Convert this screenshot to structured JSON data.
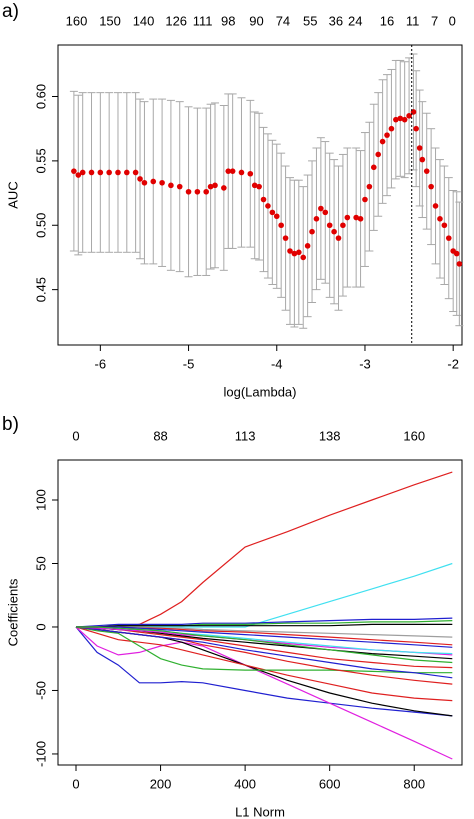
{
  "chart_data": [
    {
      "type": "errorbar",
      "panel_label": "a)",
      "x_label": "log(Lambda)",
      "y_label": "AUC",
      "xlim": [
        -6.48,
        -1.9
      ],
      "ylim": [
        0.407,
        0.64
      ],
      "xticks": [
        -6,
        -5,
        -4,
        -3,
        -2
      ],
      "yticks": [
        {
          "value": 0.45,
          "label": "0.45"
        },
        {
          "value": 0.5,
          "label": "0.50"
        },
        {
          "value": 0.55,
          "label": "0.55"
        },
        {
          "value": 0.6,
          "label": "0.60"
        }
      ],
      "xticks_top": [
        {
          "value": -6.27,
          "label": "160"
        },
        {
          "value": -5.89,
          "label": "150"
        },
        {
          "value": -5.51,
          "label": "140"
        },
        {
          "value": -5.14,
          "label": "126"
        },
        {
          "value": -4.84,
          "label": "111"
        },
        {
          "value": -4.55,
          "label": "98"
        },
        {
          "value": -4.23,
          "label": "90"
        },
        {
          "value": -3.93,
          "label": "74"
        },
        {
          "value": -3.62,
          "label": "55"
        },
        {
          "value": -3.33,
          "label": "36"
        },
        {
          "value": -3.11,
          "label": "24"
        },
        {
          "value": -2.75,
          "label": "16"
        },
        {
          "value": -2.46,
          "label": "11"
        },
        {
          "value": -2.21,
          "label": "7"
        },
        {
          "value": -2.01,
          "label": "0"
        }
      ],
      "reference_line_x": -2.47,
      "color": "#e00000",
      "error_color": "#a8a8a8",
      "x": [
        -6.3,
        -6.25,
        -6.2,
        -6.1,
        -6.0,
        -5.9,
        -5.8,
        -5.7,
        -5.6,
        -5.55,
        -5.5,
        -5.4,
        -5.3,
        -5.2,
        -5.1,
        -5.0,
        -4.9,
        -4.8,
        -4.75,
        -4.7,
        -4.6,
        -4.55,
        -4.5,
        -4.4,
        -4.3,
        -4.25,
        -4.2,
        -4.15,
        -4.1,
        -4.05,
        -4.0,
        -3.95,
        -3.9,
        -3.85,
        -3.8,
        -3.75,
        -3.7,
        -3.65,
        -3.6,
        -3.55,
        -3.5,
        -3.45,
        -3.4,
        -3.35,
        -3.3,
        -3.25,
        -3.2,
        -3.1,
        -3.05,
        -3.0,
        -2.95,
        -2.9,
        -2.85,
        -2.8,
        -2.75,
        -2.7,
        -2.65,
        -2.6,
        -2.55,
        -2.5,
        -2.45,
        -2.42,
        -2.38,
        -2.35,
        -2.3,
        -2.25,
        -2.2,
        -2.15,
        -2.1,
        -2.05,
        -2.0,
        -1.96,
        -1.93
      ],
      "values": [
        0.542,
        0.539,
        0.541,
        0.541,
        0.541,
        0.541,
        0.541,
        0.541,
        0.541,
        0.536,
        0.533,
        0.534,
        0.533,
        0.531,
        0.53,
        0.526,
        0.526,
        0.526,
        0.53,
        0.531,
        0.529,
        0.542,
        0.542,
        0.541,
        0.54,
        0.531,
        0.53,
        0.52,
        0.515,
        0.51,
        0.507,
        0.5,
        0.49,
        0.48,
        0.478,
        0.479,
        0.475,
        0.484,
        0.495,
        0.505,
        0.513,
        0.51,
        0.5,
        0.495,
        0.49,
        0.5,
        0.506,
        0.506,
        0.505,
        0.52,
        0.53,
        0.545,
        0.555,
        0.565,
        0.57,
        0.575,
        0.582,
        0.583,
        0.582,
        0.585,
        0.588,
        0.575,
        0.56,
        0.551,
        0.542,
        0.53,
        0.515,
        0.505,
        0.5,
        0.49,
        0.48,
        0.478,
        0.47
      ],
      "errors": [
        0.062,
        0.062,
        0.062,
        0.062,
        0.062,
        0.062,
        0.062,
        0.062,
        0.062,
        0.062,
        0.063,
        0.064,
        0.065,
        0.066,
        0.066,
        0.066,
        0.065,
        0.065,
        0.064,
        0.064,
        0.064,
        0.06,
        0.06,
        0.058,
        0.057,
        0.057,
        0.057,
        0.056,
        0.056,
        0.056,
        0.056,
        0.056,
        0.056,
        0.057,
        0.057,
        0.056,
        0.055,
        0.055,
        0.055,
        0.055,
        0.055,
        0.055,
        0.056,
        0.056,
        0.056,
        0.055,
        0.054,
        0.054,
        0.053,
        0.052,
        0.05,
        0.049,
        0.048,
        0.048,
        0.047,
        0.046,
        0.046,
        0.045,
        0.045,
        0.045,
        0.045,
        0.045,
        0.045,
        0.045,
        0.045,
        0.045,
        0.045,
        0.046,
        0.046,
        0.047,
        0.047,
        0.048,
        0.048
      ]
    },
    {
      "type": "line",
      "panel_label": "b)",
      "x_label": "L1 Norm",
      "y_label": "Coefficients",
      "xlim": [
        -42.6,
        913
      ],
      "ylim": [
        -108.7,
        131.5
      ],
      "xticks": [
        0,
        200,
        400,
        600,
        800
      ],
      "yticks": [
        -100,
        -50,
        0,
        50,
        100
      ],
      "xticks_top": [
        0,
        {
          "value": 200,
          "label": "88"
        },
        {
          "value": 400,
          "label": "113"
        },
        {
          "value": 600,
          "label": "138"
        },
        {
          "value": 800,
          "label": "160"
        }
      ],
      "x": [
        0,
        50,
        100,
        150,
        200,
        250,
        300,
        400,
        500,
        600,
        700,
        800,
        890
      ],
      "series": [
        {
          "color": "#df2020",
          "values": [
            0,
            0,
            0,
            2,
            10,
            20,
            35,
            63,
            75,
            88,
            100,
            112,
            122
          ]
        },
        {
          "color": "#40e0f0",
          "values": [
            0,
            0,
            0,
            0,
            0,
            0,
            0,
            0,
            10,
            20,
            30,
            40,
            50
          ]
        },
        {
          "color": "#2020d0",
          "values": [
            0,
            -20,
            -30,
            -44,
            -44,
            -43,
            -44,
            -50,
            -56,
            -60,
            -64,
            -67,
            -70
          ]
        },
        {
          "color": "#e020e0",
          "values": [
            0,
            -15,
            -22,
            -20,
            -15,
            -12,
            -15,
            -30,
            -45,
            -60,
            -75,
            -90,
            -104
          ]
        },
        {
          "color": "#000000",
          "values": [
            0,
            -2,
            -4,
            -6,
            -8,
            -12,
            -18,
            -30,
            -42,
            -52,
            -60,
            -66,
            -70
          ]
        },
        {
          "color": "#df2020",
          "values": [
            0,
            -5,
            -10,
            -12,
            -14,
            -18,
            -22,
            -30,
            -38,
            -45,
            -52,
            -56,
            -58
          ]
        },
        {
          "color": "#30b030",
          "values": [
            0,
            -3,
            -5,
            -15,
            -25,
            -30,
            -33,
            -34,
            -34,
            -34,
            -35,
            -36,
            -36
          ]
        },
        {
          "color": "#df2020",
          "values": [
            0,
            -2,
            -4,
            -6,
            -8,
            -10,
            -14,
            -20,
            -27,
            -33,
            -38,
            -42,
            -45
          ]
        },
        {
          "color": "#2020d0",
          "values": [
            0,
            -2,
            -4,
            -6,
            -8,
            -10,
            -12,
            -18,
            -23,
            -28,
            -33,
            -36,
            -40
          ]
        },
        {
          "color": "#df2020",
          "values": [
            0,
            -1,
            -2,
            -4,
            -6,
            -8,
            -10,
            -15,
            -20,
            -25,
            -28,
            -31,
            -32
          ]
        },
        {
          "color": "#000000",
          "values": [
            0,
            -1,
            -2,
            -3,
            -5,
            -7,
            -9,
            -12,
            -15,
            -18,
            -21,
            -23,
            -25
          ]
        },
        {
          "color": "#e020e0",
          "values": [
            0,
            -1,
            -2,
            -3,
            -4,
            -6,
            -7,
            -10,
            -13,
            -16,
            -18,
            -20,
            -22
          ]
        },
        {
          "color": "#40e0f0",
          "values": [
            0,
            0,
            -1,
            -2,
            -3,
            -5,
            -6,
            -9,
            -12,
            -15,
            -18,
            -20,
            -21
          ]
        },
        {
          "color": "#2020d0",
          "values": [
            0,
            1,
            2,
            2,
            2,
            2,
            3,
            3,
            4,
            5,
            6,
            6,
            7
          ]
        },
        {
          "color": "#30b030",
          "values": [
            0,
            0,
            1,
            1,
            1,
            1,
            2,
            2,
            3,
            3,
            4,
            4,
            5
          ]
        },
        {
          "color": "#9e9e9e",
          "values": [
            0,
            0,
            0,
            0,
            -1,
            -1,
            -2,
            -3,
            -4,
            -5,
            -6,
            -7,
            -8
          ]
        },
        {
          "color": "#000000",
          "values": [
            0,
            0,
            1,
            1,
            1,
            1,
            1,
            1,
            1,
            1,
            2,
            2,
            2
          ]
        },
        {
          "color": "#df2020",
          "values": [
            0,
            0,
            0,
            -1,
            -1,
            -2,
            -3,
            -4,
            -6,
            -8,
            -10,
            -12,
            -14
          ]
        },
        {
          "color": "#2020d0",
          "values": [
            0,
            0,
            0,
            -1,
            -2,
            -3,
            -4,
            -6,
            -8,
            -10,
            -12,
            -14,
            -16
          ]
        },
        {
          "color": "#30b030",
          "values": [
            0,
            0,
            -1,
            -2,
            -3,
            -5,
            -7,
            -10,
            -14,
            -18,
            -22,
            -26,
            -28
          ]
        }
      ]
    }
  ]
}
